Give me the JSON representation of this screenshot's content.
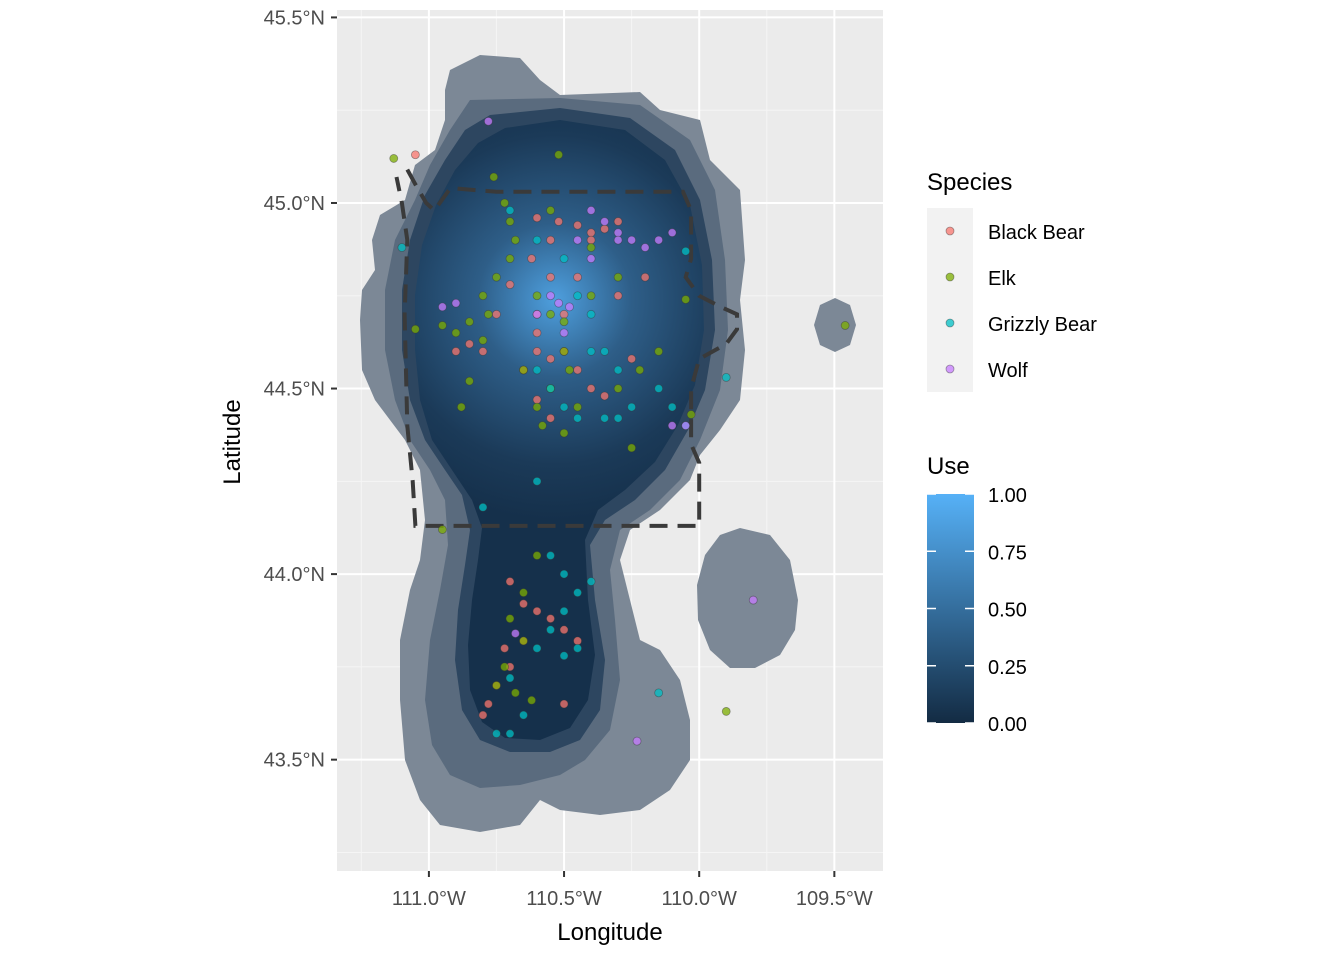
{
  "chart_data": {
    "type": "scatter",
    "subtype": "map-with-density-surface",
    "xlabel": "Longitude",
    "ylabel": "Latitude",
    "xlim": [
      -111.34,
      -109.32
    ],
    "ylim": [
      43.2,
      45.52
    ],
    "x_ticks": [
      {
        "value": -111.0,
        "label": "111.0°W"
      },
      {
        "value": -110.5,
        "label": "110.5°W"
      },
      {
        "value": -110.0,
        "label": "110.0°W"
      },
      {
        "value": -109.5,
        "label": "109.5°W"
      }
    ],
    "y_ticks": [
      {
        "value": 43.5,
        "label": "43.5°N"
      },
      {
        "value": 44.0,
        "label": "44.0°N"
      },
      {
        "value": 44.5,
        "label": "44.5°N"
      },
      {
        "value": 45.0,
        "label": "45.0°N"
      },
      {
        "value": 45.5,
        "label": "45.5°N"
      }
    ],
    "grid": true,
    "legend_position": "right",
    "species_legend": {
      "title": "Species",
      "entries": [
        {
          "label": "Black Bear",
          "color": "#F8766D"
        },
        {
          "label": "Elk",
          "color": "#7CAE00"
        },
        {
          "label": "Grizzly Bear",
          "color": "#00BFC4"
        },
        {
          "label": "Wolf",
          "color": "#C77CFF"
        }
      ]
    },
    "use_legend": {
      "title": "Use",
      "low_color": "#132B43",
      "high_color": "#56B1F7",
      "breaks": [
        {
          "value": 0.0,
          "label": "0.00"
        },
        {
          "value": 0.25,
          "label": "0.25"
        },
        {
          "value": 0.5,
          "label": "0.50"
        },
        {
          "value": 0.75,
          "label": "0.75"
        },
        {
          "value": 1.0,
          "label": "1.00"
        }
      ]
    },
    "density_peak": {
      "lon": -110.55,
      "lat": 44.68
    },
    "boundary": [
      [
        -111.08,
        45.09
      ],
      [
        -111.05,
        45.05
      ],
      [
        -111.01,
        45.0
      ],
      [
        -110.98,
        44.98
      ],
      [
        -110.92,
        45.04
      ],
      [
        -110.75,
        45.03
      ],
      [
        -110.5,
        45.03
      ],
      [
        -110.3,
        45.03
      ],
      [
        -110.06,
        45.03
      ],
      [
        -110.03,
        44.98
      ],
      [
        -110.03,
        44.85
      ],
      [
        -110.05,
        44.8
      ],
      [
        -110.0,
        44.75
      ],
      [
        -109.92,
        44.72
      ],
      [
        -109.86,
        44.7
      ],
      [
        -109.86,
        44.66
      ],
      [
        -109.9,
        44.62
      ],
      [
        -110.0,
        44.58
      ],
      [
        -110.03,
        44.5
      ],
      [
        -110.03,
        44.35
      ],
      [
        -110.0,
        44.3
      ],
      [
        -110.0,
        44.13
      ],
      [
        -110.5,
        44.13
      ],
      [
        -110.75,
        44.13
      ],
      [
        -111.05,
        44.13
      ],
      [
        -111.06,
        44.25
      ],
      [
        -111.08,
        44.4
      ],
      [
        -111.09,
        44.7
      ],
      [
        -111.08,
        44.9
      ],
      [
        -111.1,
        45.0
      ],
      [
        -111.12,
        45.07
      ]
    ],
    "series": [
      {
        "name": "Black Bear",
        "color": "#F8766D",
        "points": [
          [
            -111.05,
            45.13
          ],
          [
            -110.6,
            44.96
          ],
          [
            -110.52,
            44.95
          ],
          [
            -110.45,
            44.94
          ],
          [
            -110.4,
            44.92
          ],
          [
            -110.35,
            44.93
          ],
          [
            -110.3,
            44.95
          ],
          [
            -110.55,
            44.9
          ],
          [
            -110.62,
            44.85
          ],
          [
            -110.7,
            44.78
          ],
          [
            -110.75,
            44.7
          ],
          [
            -110.8,
            44.6
          ],
          [
            -110.85,
            44.62
          ],
          [
            -110.9,
            44.6
          ],
          [
            -110.6,
            44.6
          ],
          [
            -110.55,
            44.58
          ],
          [
            -110.5,
            44.6
          ],
          [
            -110.45,
            44.55
          ],
          [
            -110.4,
            44.5
          ],
          [
            -110.35,
            44.48
          ],
          [
            -110.25,
            44.58
          ],
          [
            -110.2,
            44.8
          ],
          [
            -110.3,
            44.75
          ],
          [
            -110.45,
            44.8
          ],
          [
            -110.6,
            44.65
          ],
          [
            -110.65,
            44.55
          ],
          [
            -110.6,
            44.47
          ],
          [
            -110.55,
            44.42
          ],
          [
            -110.7,
            43.98
          ],
          [
            -110.65,
            43.92
          ],
          [
            -110.6,
            43.9
          ],
          [
            -110.55,
            43.88
          ],
          [
            -110.5,
            43.85
          ],
          [
            -110.45,
            43.82
          ],
          [
            -110.7,
            43.75
          ],
          [
            -110.75,
            43.7
          ],
          [
            -110.78,
            43.65
          ],
          [
            -110.8,
            43.62
          ],
          [
            -110.72,
            43.8
          ],
          [
            -110.65,
            43.82
          ],
          [
            -110.5,
            43.65
          ],
          [
            -110.4,
            44.9
          ],
          [
            -110.5,
            44.7
          ],
          [
            -110.6,
            44.7
          ],
          [
            -110.55,
            44.8
          ]
        ]
      },
      {
        "name": "Elk",
        "color": "#7CAE00",
        "points": [
          [
            -111.13,
            45.12
          ],
          [
            -110.52,
            45.13
          ],
          [
            -110.76,
            45.07
          ],
          [
            -110.72,
            45.0
          ],
          [
            -110.7,
            44.95
          ],
          [
            -110.68,
            44.9
          ],
          [
            -110.7,
            44.85
          ],
          [
            -110.75,
            44.8
          ],
          [
            -110.8,
            44.75
          ],
          [
            -110.78,
            44.7
          ],
          [
            -110.85,
            44.68
          ],
          [
            -110.95,
            44.67
          ],
          [
            -111.05,
            44.66
          ],
          [
            -110.9,
            44.65
          ],
          [
            -110.8,
            44.63
          ],
          [
            -110.6,
            44.75
          ],
          [
            -110.55,
            44.7
          ],
          [
            -110.5,
            44.68
          ],
          [
            -110.5,
            44.6
          ],
          [
            -110.48,
            44.55
          ],
          [
            -110.55,
            44.5
          ],
          [
            -110.6,
            44.45
          ],
          [
            -110.58,
            44.4
          ],
          [
            -110.5,
            44.38
          ],
          [
            -110.85,
            44.52
          ],
          [
            -110.88,
            44.45
          ],
          [
            -110.65,
            44.55
          ],
          [
            -110.3,
            44.5
          ],
          [
            -110.22,
            44.55
          ],
          [
            -110.15,
            44.6
          ],
          [
            -110.05,
            44.74
          ],
          [
            -110.03,
            44.43
          ],
          [
            -110.25,
            44.34
          ],
          [
            -110.3,
            44.8
          ],
          [
            -110.4,
            44.88
          ],
          [
            -110.55,
            44.98
          ],
          [
            -110.95,
            44.12
          ],
          [
            -110.6,
            44.05
          ],
          [
            -110.65,
            43.95
          ],
          [
            -110.7,
            43.88
          ],
          [
            -110.72,
            43.75
          ],
          [
            -110.75,
            43.7
          ],
          [
            -110.68,
            43.68
          ],
          [
            -110.62,
            43.66
          ],
          [
            -109.9,
            43.63
          ],
          [
            -109.46,
            44.67
          ],
          [
            -110.4,
            44.75
          ],
          [
            -110.45,
            44.45
          ],
          [
            -110.65,
            43.82
          ]
        ]
      },
      {
        "name": "Grizzly Bear",
        "color": "#00BFC4",
        "points": [
          [
            -111.1,
            44.88
          ],
          [
            -110.7,
            44.98
          ],
          [
            -110.6,
            44.9
          ],
          [
            -110.5,
            44.85
          ],
          [
            -110.45,
            44.75
          ],
          [
            -110.4,
            44.7
          ],
          [
            -110.35,
            44.6
          ],
          [
            -110.3,
            44.55
          ],
          [
            -110.25,
            44.45
          ],
          [
            -110.15,
            44.5
          ],
          [
            -110.1,
            44.45
          ],
          [
            -110.05,
            44.4
          ],
          [
            -109.9,
            44.53
          ],
          [
            -110.05,
            44.87
          ],
          [
            -110.3,
            44.42
          ],
          [
            -110.45,
            44.42
          ],
          [
            -110.55,
            44.5
          ],
          [
            -110.6,
            44.55
          ],
          [
            -110.6,
            44.25
          ],
          [
            -110.8,
            44.18
          ],
          [
            -110.55,
            44.05
          ],
          [
            -110.5,
            44.0
          ],
          [
            -110.45,
            43.95
          ],
          [
            -110.4,
            43.98
          ],
          [
            -110.5,
            43.9
          ],
          [
            -110.55,
            43.85
          ],
          [
            -110.6,
            43.8
          ],
          [
            -110.5,
            43.78
          ],
          [
            -110.45,
            43.8
          ],
          [
            -110.7,
            43.72
          ],
          [
            -110.65,
            43.62
          ],
          [
            -110.7,
            43.57
          ],
          [
            -110.75,
            43.57
          ],
          [
            -110.15,
            43.68
          ],
          [
            -110.35,
            44.42
          ],
          [
            -110.4,
            44.6
          ],
          [
            -110.5,
            44.45
          ]
        ]
      },
      {
        "name": "Wolf",
        "color": "#C77CFF",
        "points": [
          [
            -110.78,
            45.22
          ],
          [
            -110.4,
            44.98
          ],
          [
            -110.35,
            44.95
          ],
          [
            -110.3,
            44.92
          ],
          [
            -110.25,
            44.9
          ],
          [
            -110.2,
            44.88
          ],
          [
            -110.15,
            44.9
          ],
          [
            -110.1,
            44.92
          ],
          [
            -110.45,
            44.9
          ],
          [
            -110.4,
            44.85
          ],
          [
            -110.55,
            44.75
          ],
          [
            -110.52,
            44.73
          ],
          [
            -110.48,
            44.72
          ],
          [
            -110.9,
            44.73
          ],
          [
            -110.95,
            44.72
          ],
          [
            -110.1,
            44.4
          ],
          [
            -109.8,
            43.93
          ],
          [
            -110.23,
            43.55
          ],
          [
            -110.68,
            43.84
          ],
          [
            -110.5,
            44.65
          ],
          [
            -110.6,
            44.7
          ],
          [
            -110.3,
            44.9
          ],
          [
            -110.05,
            44.4
          ]
        ]
      }
    ]
  }
}
